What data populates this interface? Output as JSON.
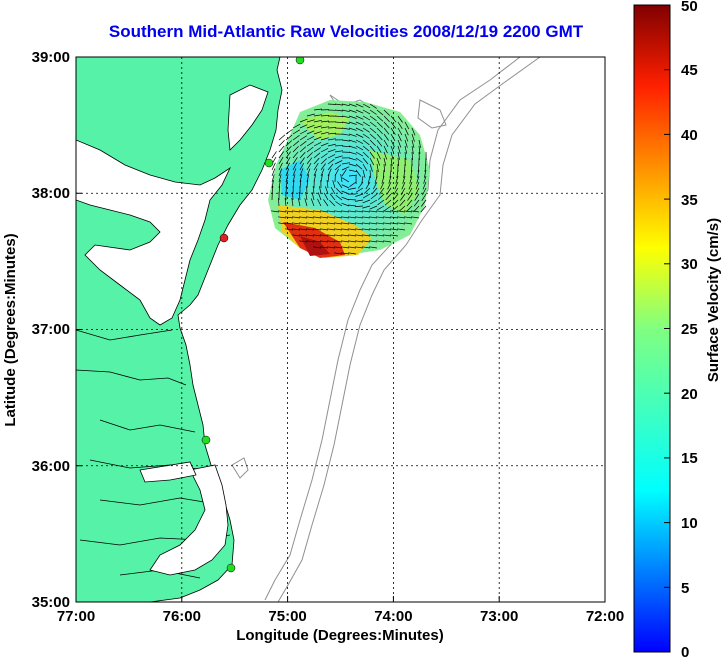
{
  "title": "Southern Mid-Atlantic Raw Velocities 2008/12/19 2200 GMT",
  "xaxis": {
    "label": "Longitude (Degrees:Minutes)",
    "ticks": [
      "77:00",
      "76:00",
      "75:00",
      "74:00",
      "73:00",
      "72:00"
    ]
  },
  "yaxis": {
    "label": "Latitude (Degrees:Minutes)",
    "ticks": [
      "39:00",
      "38:00",
      "37:00",
      "36:00",
      "35:00"
    ]
  },
  "colorbar": {
    "label": "Surface Velocity (cm/s)",
    "ticks": [
      "50",
      "45",
      "40",
      "35",
      "30",
      "25",
      "20",
      "15",
      "10",
      "5",
      "0"
    ],
    "range": [
      0,
      50
    ],
    "colormap": "jet"
  },
  "colors": {
    "land": "#55f2a8",
    "coast_outline": "#000000",
    "bathymetry": "#909090",
    "grid": "#000000",
    "station_green": "#22dd22",
    "station_red": "#dd2222"
  }
}
